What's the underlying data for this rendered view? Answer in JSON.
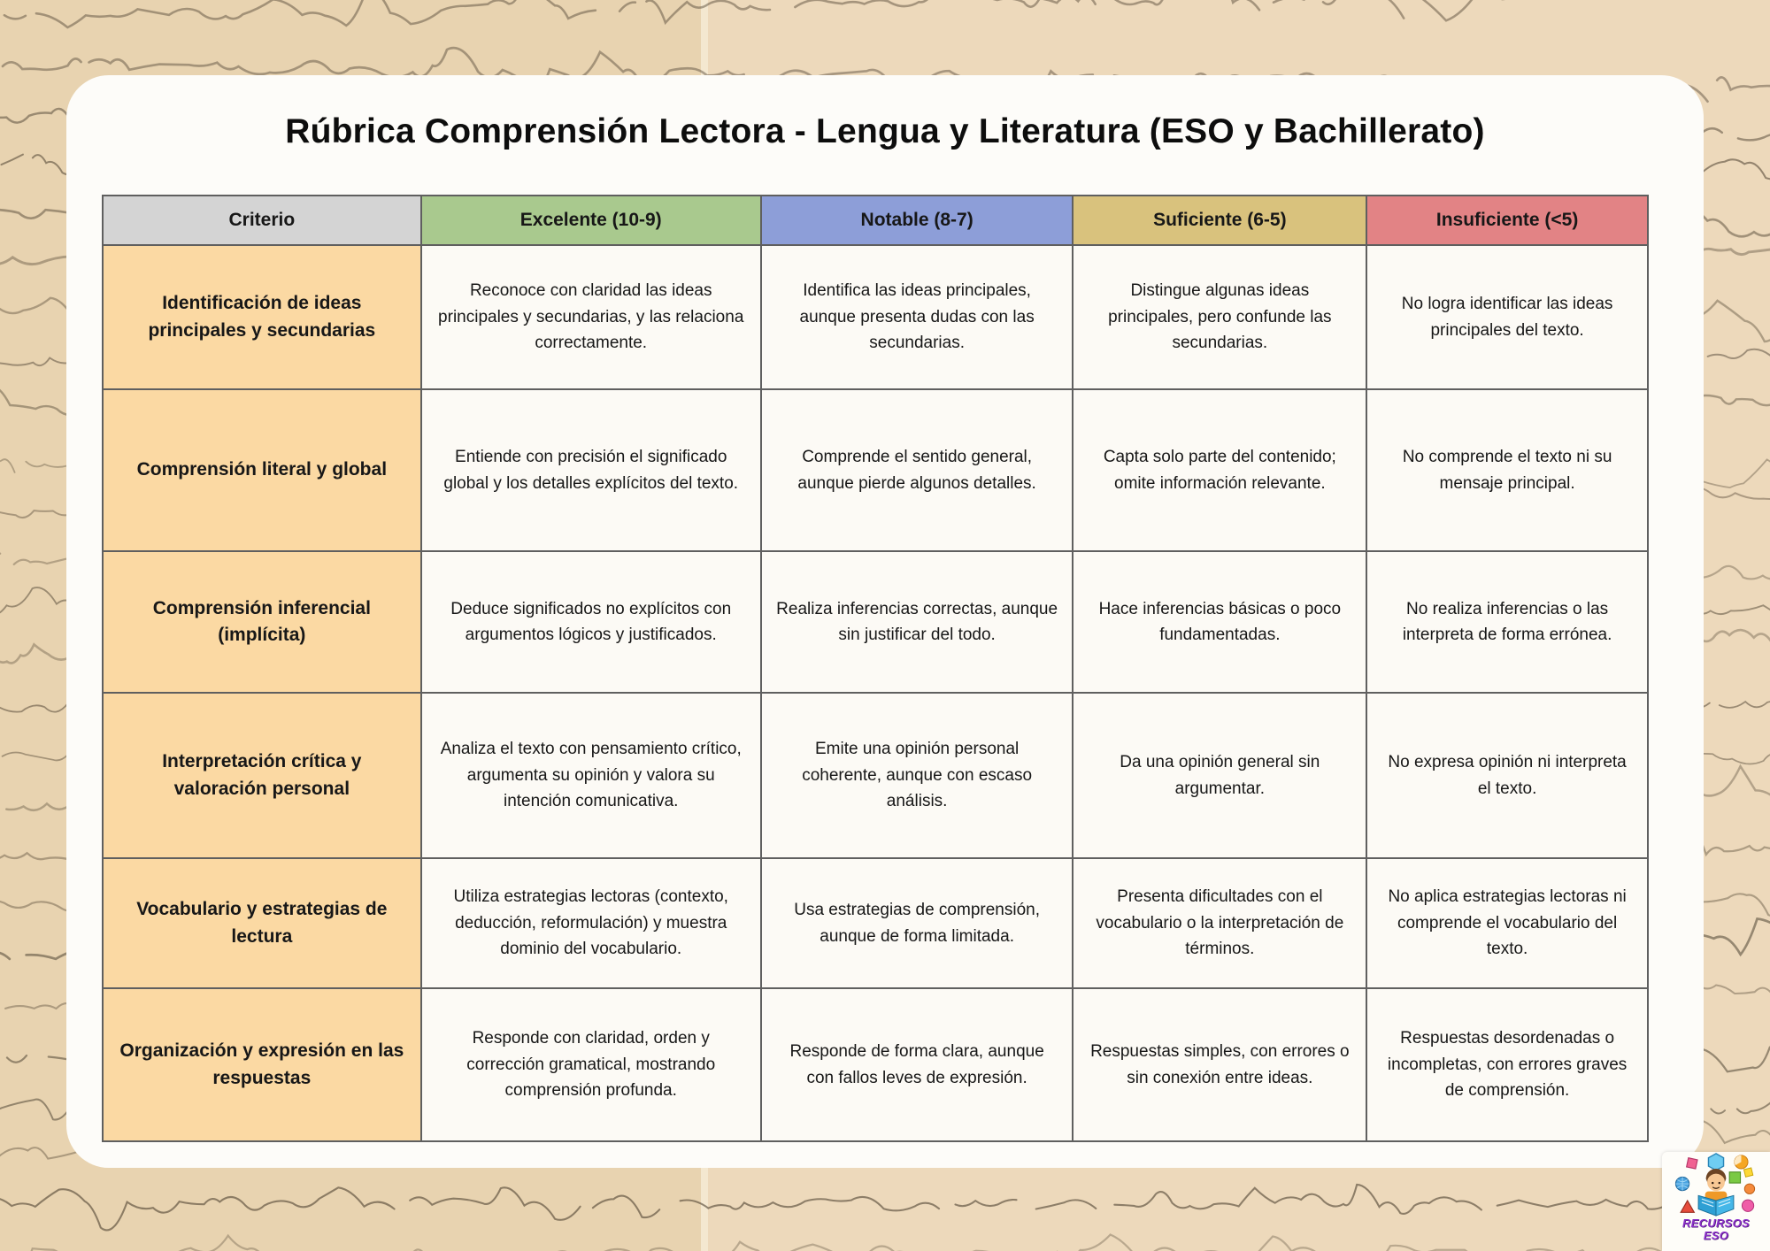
{
  "title": "Rúbrica Comprensión Lectora - Lengua y Literatura (ESO y Bachillerato)",
  "table": {
    "headers": [
      {
        "label": "Criterio",
        "color": "#d4d4d4"
      },
      {
        "label": "Excelente (10-9)",
        "color": "#a9c98e"
      },
      {
        "label": "Notable (8-7)",
        "color": "#8d9ed8"
      },
      {
        "label": "Suficiente (6-5)",
        "color": "#d9c27d"
      },
      {
        "label": "Insuficiente (<5)",
        "color": "#e28385"
      }
    ],
    "rows": [
      {
        "criterio": "Identificación de ideas principales y secundarias",
        "excelente": "Reconoce con claridad las ideas principales y secundarias, y las relaciona correctamente.",
        "notable": "Identifica las ideas principales, aunque presenta dudas con las secundarias.",
        "suficiente": "Distingue algunas ideas principales, pero confunde las secundarias.",
        "insuficiente": "No logra identificar las ideas principales del texto."
      },
      {
        "criterio": "Comprensión literal y global",
        "excelente": "Entiende con precisión el significado global y los detalles explícitos del texto.",
        "notable": "Comprende el sentido general, aunque pierde algunos detalles.",
        "suficiente": "Capta solo parte del contenido; omite información relevante.",
        "insuficiente": "No comprende el texto ni su mensaje principal."
      },
      {
        "criterio": "Comprensión inferencial (implícita)",
        "excelente": "Deduce significados no explícitos con argumentos lógicos y justificados.",
        "notable": "Realiza inferencias correctas, aunque sin justificar del todo.",
        "suficiente": "Hace inferencias básicas o poco fundamentadas.",
        "insuficiente": "No realiza inferencias o las interpreta de forma errónea."
      },
      {
        "criterio": "Interpretación crítica y valoración personal",
        "excelente": "Analiza el texto con pensamiento crítico, argumenta su opinión y valora su intención comunicativa.",
        "notable": "Emite una opinión personal coherente, aunque con escaso análisis.",
        "suficiente": "Da una opinión general sin argumentar.",
        "insuficiente": "No expresa opinión ni interpreta el texto."
      },
      {
        "criterio": "Vocabulario y estrategias de lectura",
        "excelente": "Utiliza estrategias lectoras (contexto, deducción, reformulación) y muestra dominio del vocabulario.",
        "notable": "Usa estrategias de comprensión, aunque de forma limitada.",
        "suficiente": "Presenta dificultades con el vocabulario o la interpretación de términos.",
        "insuficiente": "No aplica estrategias lectoras ni comprende el vocabulario del texto."
      },
      {
        "criterio": "Organización y expresión en las respuestas",
        "excelente": "Responde con claridad, orden y corrección gramatical, mostrando comprensión profunda.",
        "notable": "Responde de forma clara, aunque con fallos leves de expresión.",
        "suficiente": "Respuestas simples, con errores o sin conexión entre ideas.",
        "insuficiente": "Respuestas desordenadas o incompletas, con errores graves de comprensión."
      }
    ]
  },
  "logo": {
    "line1": "RECURSOS",
    "line2": "ESO"
  },
  "colors": {
    "criterion_bg": "#fbd9a3",
    "card_bg": "#fdfcf9",
    "cell_bg": "#fcfaf5",
    "paper_left": "#e8d3b0",
    "paper_right": "#edd9bb",
    "handwriting_ink": "#554938",
    "logo_text": "#8b30c9"
  }
}
